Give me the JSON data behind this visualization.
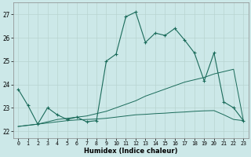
{
  "xlabel": "Humidex (Indice chaleur)",
  "bg_color": "#cce8e8",
  "line_color": "#1a6b5a",
  "grid_color": "#b8d4d0",
  "xlim": [
    -0.5,
    23.5
  ],
  "ylim": [
    21.7,
    27.5
  ],
  "xticks": [
    0,
    1,
    2,
    3,
    4,
    5,
    6,
    7,
    8,
    9,
    10,
    11,
    12,
    13,
    14,
    15,
    16,
    17,
    18,
    19,
    20,
    21,
    22,
    23
  ],
  "yticks": [
    22,
    23,
    24,
    25,
    26,
    27
  ],
  "line1_x": [
    0,
    1,
    2,
    3,
    4,
    5,
    6,
    7,
    8,
    9,
    10,
    11,
    12,
    13,
    14,
    15,
    16,
    17,
    18,
    19,
    20,
    21,
    22,
    23
  ],
  "line1_y": [
    23.8,
    23.1,
    22.3,
    23.0,
    22.7,
    22.5,
    22.6,
    22.4,
    22.45,
    25.0,
    25.3,
    26.9,
    27.1,
    25.8,
    26.2,
    26.1,
    26.4,
    25.9,
    25.35,
    24.15,
    25.35,
    23.25,
    23.0,
    22.45
  ],
  "line2_x": [
    0,
    1,
    2,
    3,
    4,
    5,
    6,
    7,
    8,
    9,
    10,
    11,
    12,
    13,
    14,
    15,
    16,
    17,
    18,
    19,
    20,
    21,
    22,
    23
  ],
  "line2_y": [
    22.2,
    22.25,
    22.3,
    22.4,
    22.5,
    22.55,
    22.6,
    22.65,
    22.75,
    22.85,
    23.0,
    23.15,
    23.3,
    23.5,
    23.65,
    23.8,
    23.95,
    24.1,
    24.2,
    24.3,
    24.45,
    24.55,
    24.65,
    22.45
  ],
  "line3_x": [
    0,
    1,
    2,
    3,
    4,
    5,
    6,
    7,
    8,
    9,
    10,
    11,
    12,
    13,
    14,
    15,
    16,
    17,
    18,
    19,
    20,
    21,
    22,
    23
  ],
  "line3_y": [
    22.2,
    22.25,
    22.3,
    22.35,
    22.4,
    22.45,
    22.48,
    22.5,
    22.52,
    22.55,
    22.6,
    22.65,
    22.7,
    22.72,
    22.75,
    22.77,
    22.8,
    22.82,
    22.85,
    22.87,
    22.88,
    22.7,
    22.5,
    22.45
  ]
}
